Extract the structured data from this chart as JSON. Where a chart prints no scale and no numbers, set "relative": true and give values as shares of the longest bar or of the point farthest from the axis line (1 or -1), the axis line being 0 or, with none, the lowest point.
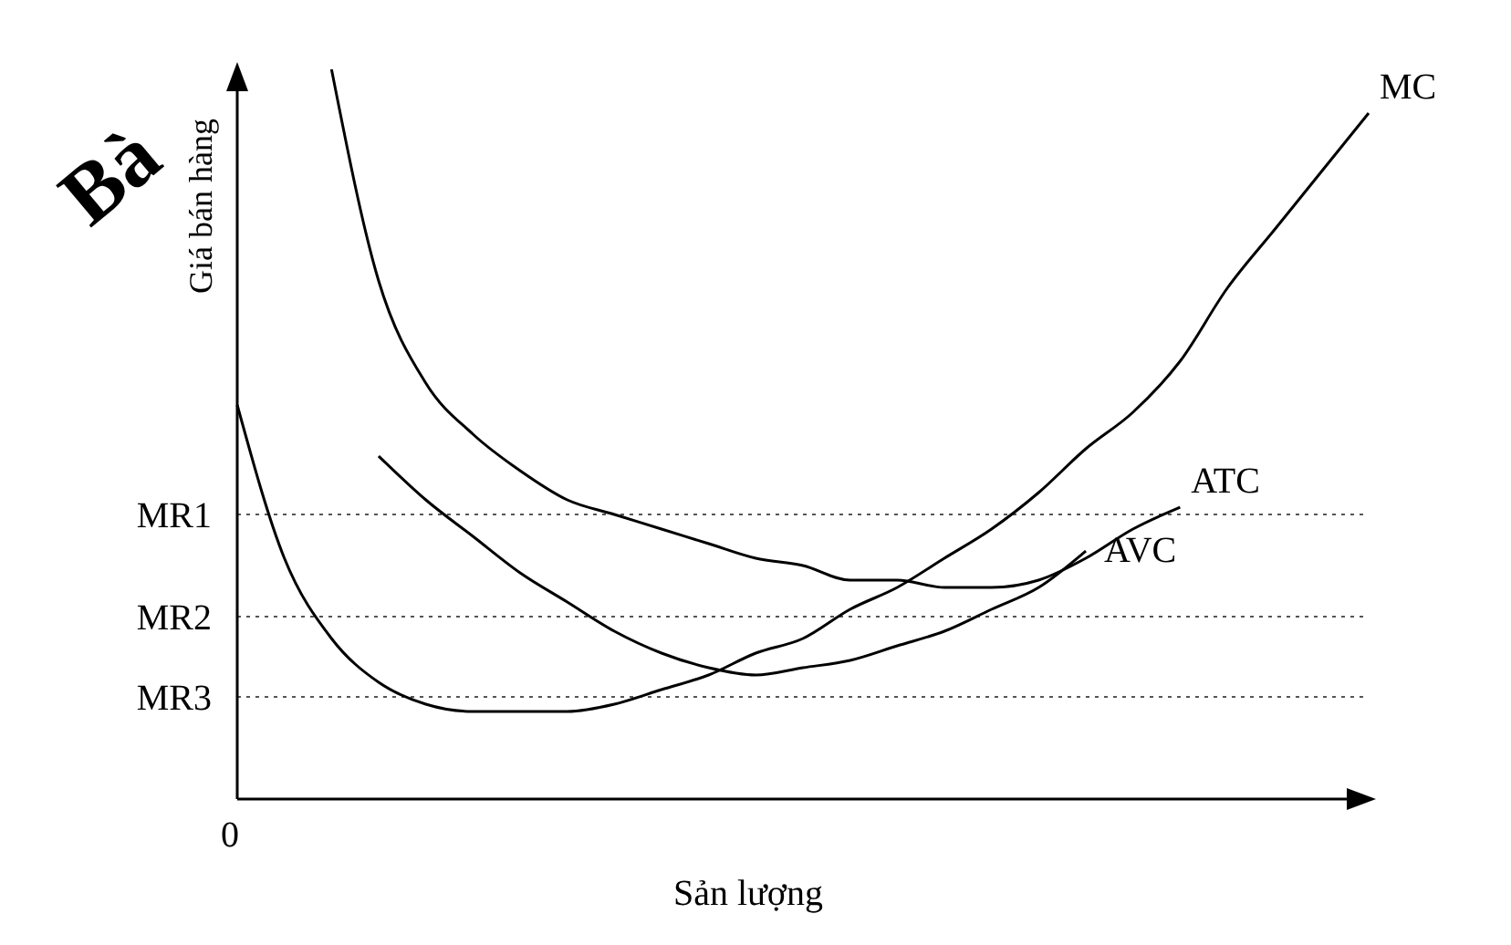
{
  "chart_data": {
    "type": "line",
    "relative": true,
    "xlabel": "Sản lượng",
    "ylabel": "Giá bán hàng",
    "annotations": [
      "Bà",
      "0"
    ],
    "categories": [
      null,
      null,
      null,
      null,
      null,
      null,
      null,
      null,
      null,
      null,
      null,
      null,
      null,
      null,
      null,
      null,
      null,
      null,
      null,
      null,
      null,
      null,
      null,
      null,
      null
    ],
    "series": [
      {
        "name": "MC",
        "color": "#000000",
        "values": [
          0.54,
          0.33,
          0.22,
          0.16,
          0.13,
          0.12,
          0.12,
          0.12,
          0.13,
          0.15,
          0.17,
          0.2,
          0.22,
          0.26,
          0.29,
          0.33,
          0.37,
          0.42,
          0.48,
          0.53,
          0.6,
          0.7,
          0.78,
          0.86,
          0.94
        ]
      },
      {
        "name": "ATC",
        "color": "#000000",
        "values": [
          null,
          null,
          1.0,
          0.71,
          0.57,
          0.5,
          0.45,
          0.41,
          0.39,
          0.37,
          0.35,
          0.33,
          0.32,
          0.3,
          0.3,
          0.29,
          0.29,
          0.3,
          0.33,
          0.37,
          0.4,
          null,
          null,
          null,
          null
        ]
      },
      {
        "name": "AVC",
        "color": "#000000",
        "values": [
          null,
          null,
          null,
          0.47,
          0.41,
          0.36,
          0.31,
          0.27,
          0.23,
          0.2,
          0.18,
          0.17,
          0.18,
          0.19,
          0.21,
          0.23,
          0.26,
          0.29,
          0.34,
          null,
          null,
          null,
          null,
          null,
          null
        ]
      }
    ],
    "ref_lines": [
      {
        "axis": "y",
        "value": 0.39,
        "label": "MR1",
        "color": "#555555",
        "line_style": "dotted"
      },
      {
        "axis": "y",
        "value": 0.25,
        "label": "MR2",
        "color": "#555555",
        "line_style": "dotted"
      },
      {
        "axis": "y",
        "value": 0.14,
        "label": "MR3",
        "color": "#555555",
        "line_style": "dotted"
      }
    ],
    "grid": false,
    "legend": false,
    "marker": "none",
    "line_style": "solid"
  }
}
